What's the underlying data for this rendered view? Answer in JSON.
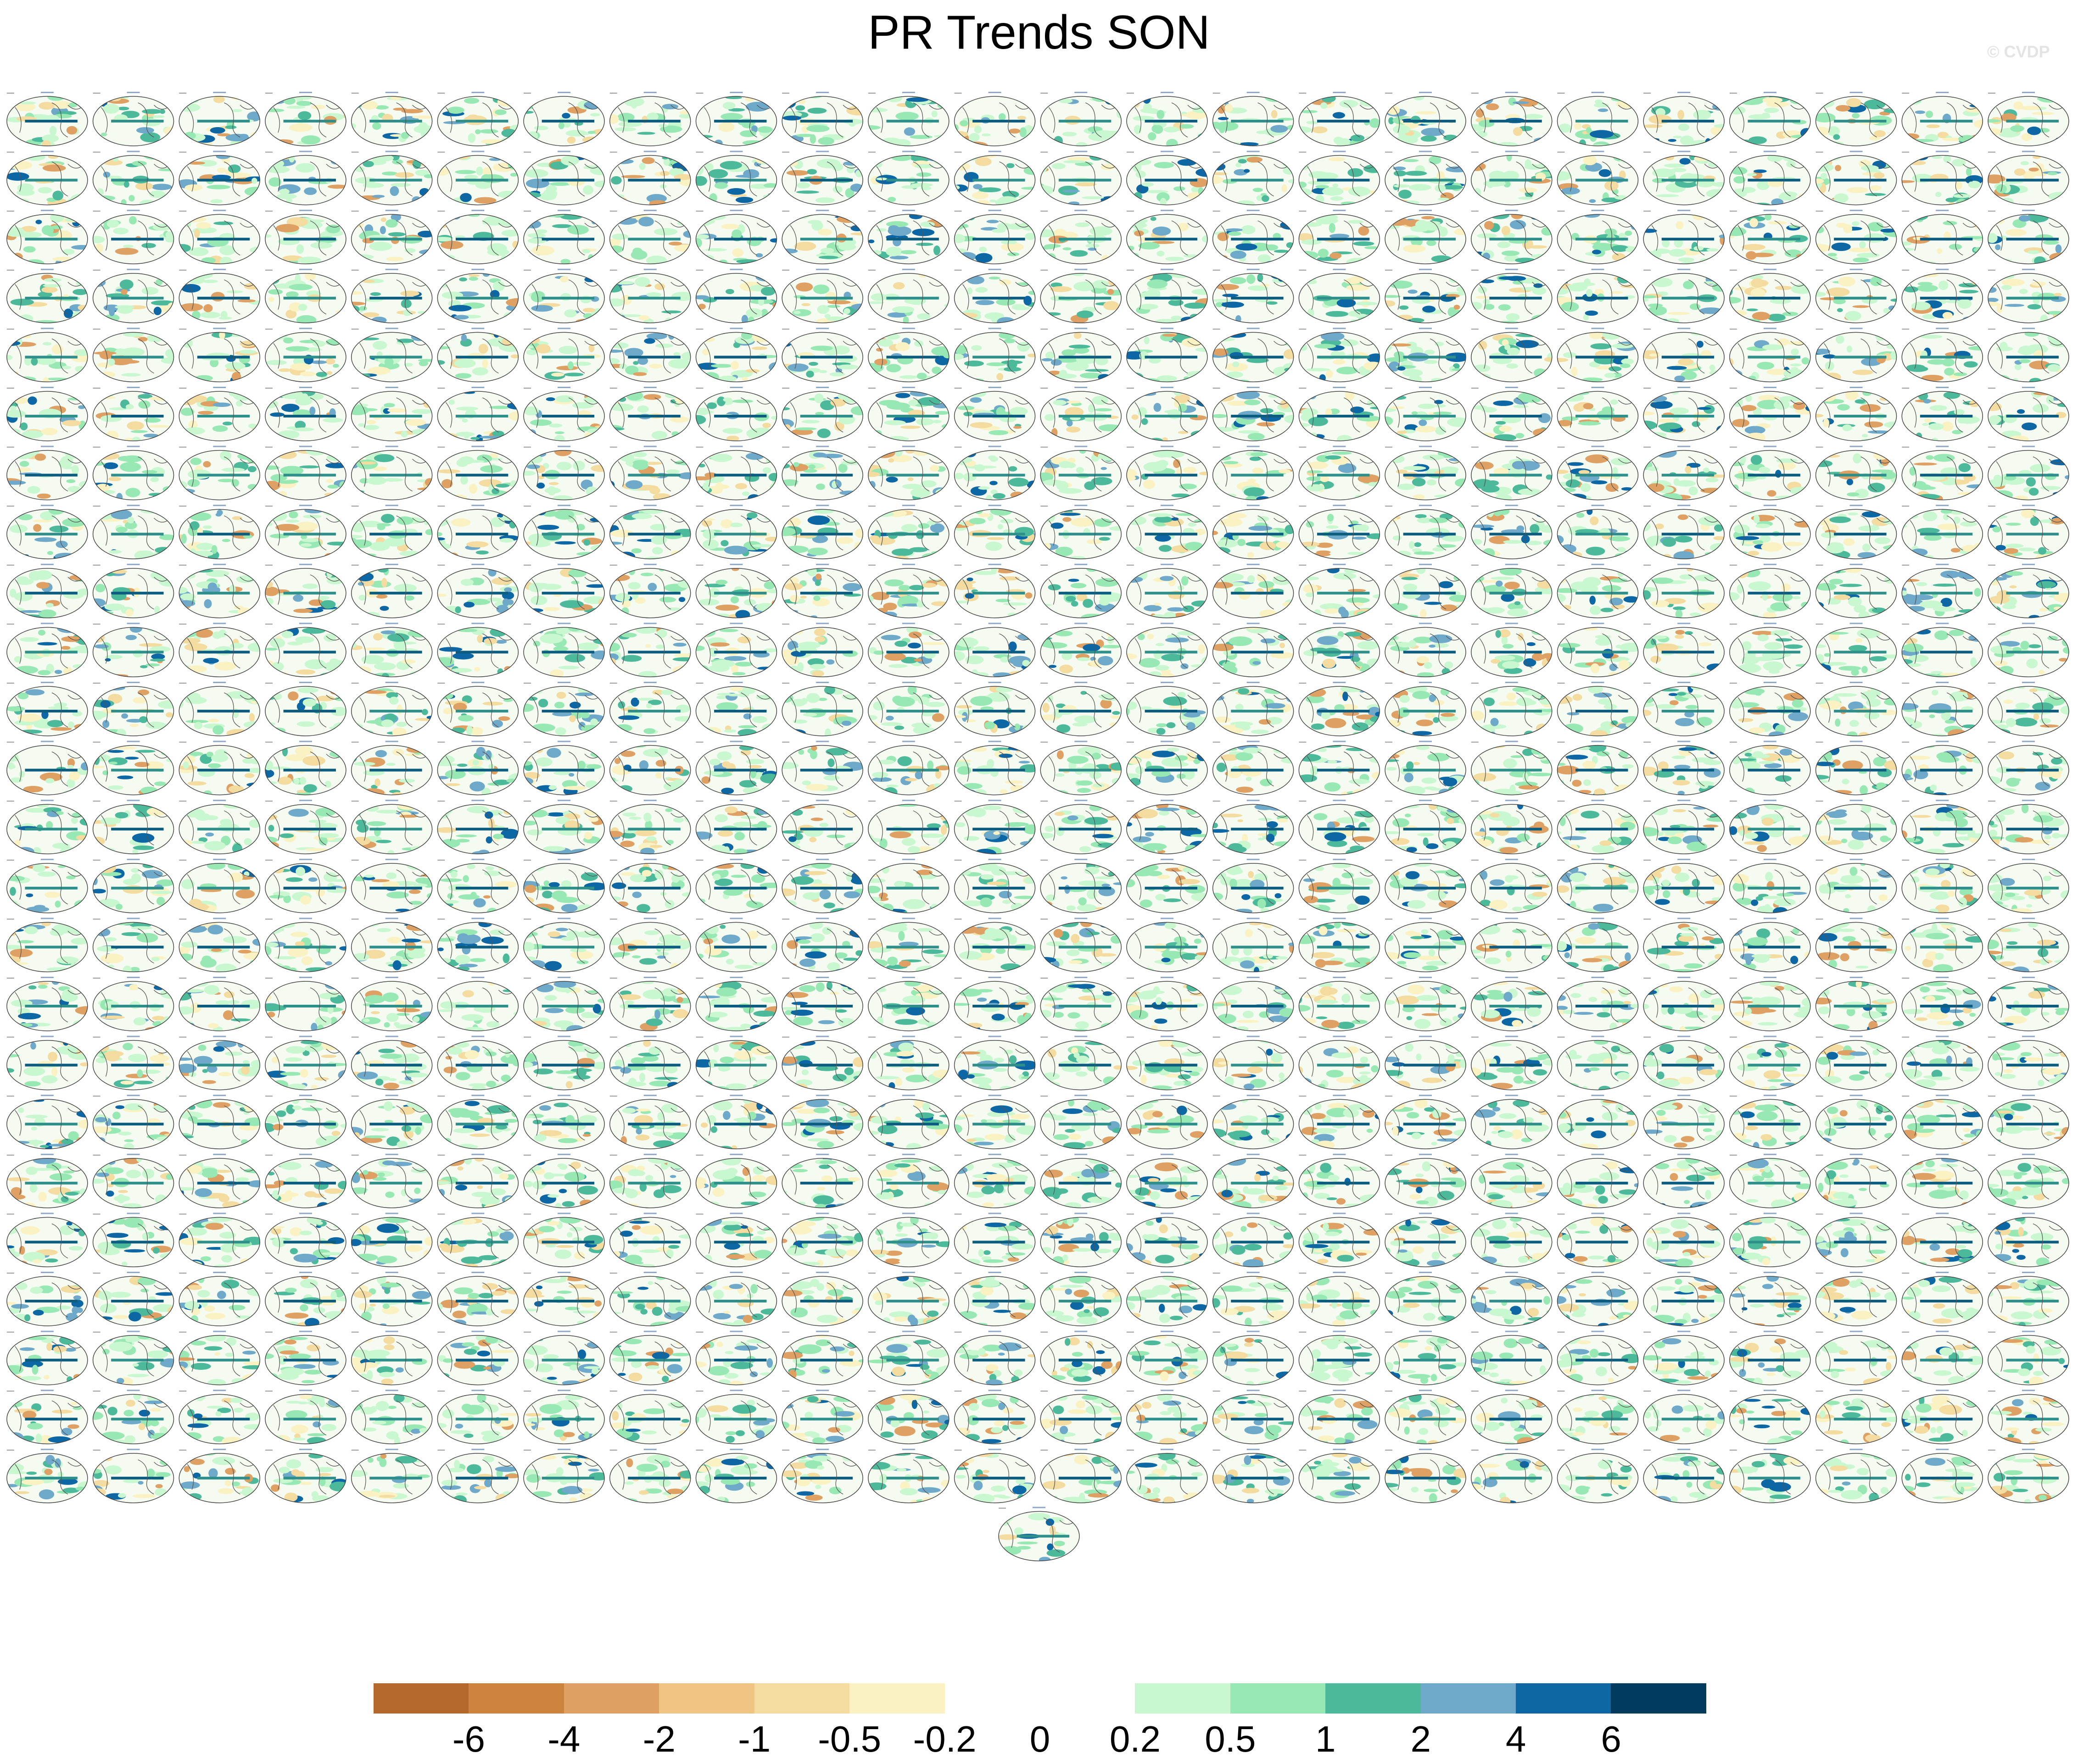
{
  "title": "PR Trends SON",
  "watermark": "© CVDP",
  "panel_grid": {
    "rows": 24,
    "cols": 24,
    "extra_panels_last_row": 1,
    "panel_style": "global-ellipse-map"
  },
  "colorbar": {
    "colors": [
      "#b5682b",
      "#cc843e",
      "#dea063",
      "#f0c483",
      "#f4dca0",
      "#fbf2c3",
      "#ffffff",
      "#ffffff",
      "#c9f7cf",
      "#98e8b4",
      "#4db99b",
      "#6fa9ca",
      "#0c67a4",
      "#003a5c"
    ],
    "labels": [
      "-6",
      "-4",
      "-2",
      "-1",
      "-0.5",
      "-0.2",
      "0",
      "0.2",
      "0.5",
      "1",
      "2",
      "4",
      "6"
    ]
  }
}
